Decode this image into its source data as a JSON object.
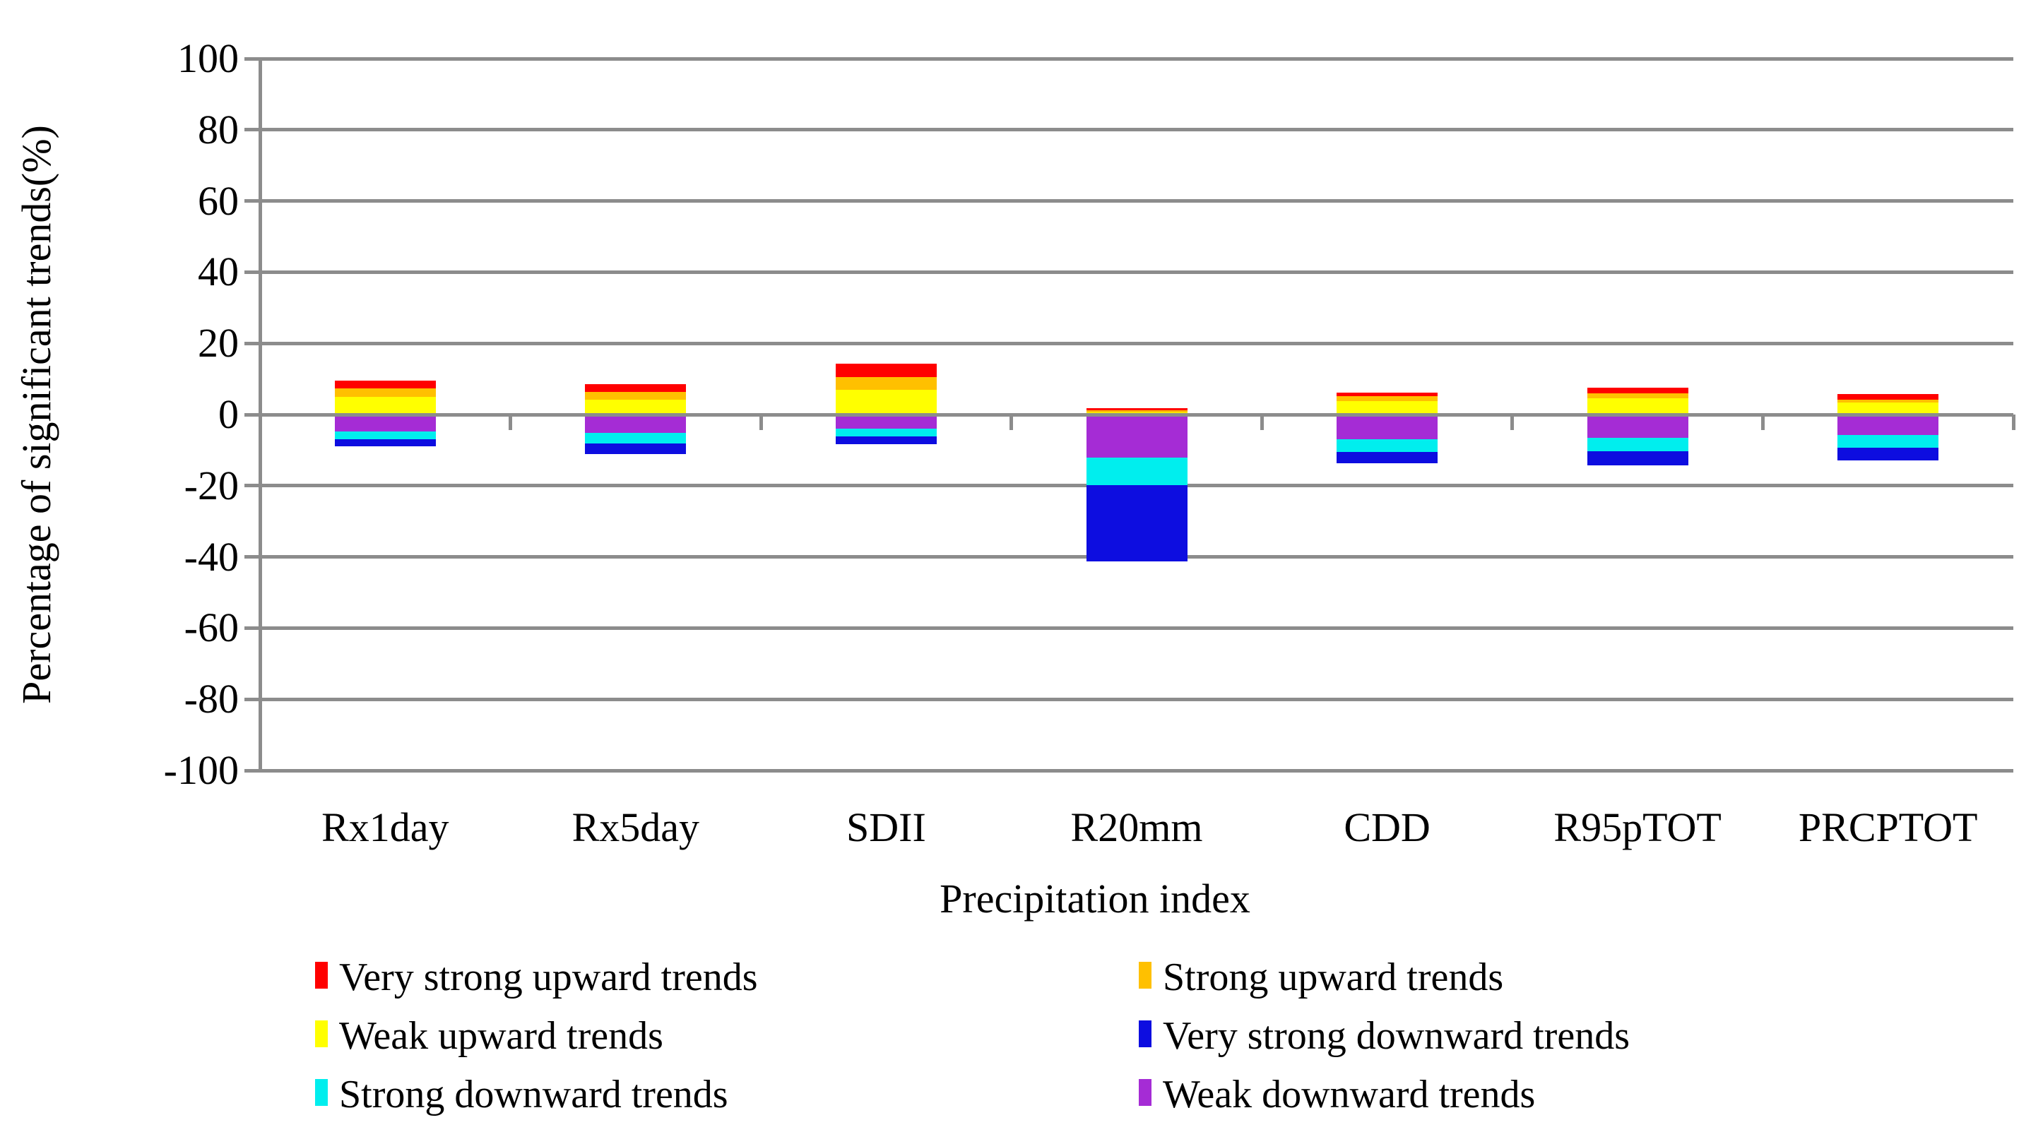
{
  "chart_data": {
    "type": "bar",
    "stacked": true,
    "title": "",
    "xlabel": "Precipitation index",
    "ylabel": "Percentage of significant trends(%)",
    "ylim": [
      -100,
      100
    ],
    "ytick_step": 20,
    "ytick_labels": [
      "100",
      "80",
      "60",
      "40",
      "20",
      "0",
      "-20",
      "-40",
      "-60",
      "-80",
      "-100"
    ],
    "grid": true,
    "legend_position": "bottom",
    "legend_columns": 2,
    "categories": [
      "Rx1day",
      "Rx5day",
      "SDII",
      "R20mm",
      "CDD",
      "R95pTOT",
      "PRCPTOT"
    ],
    "series": [
      {
        "name": "Very strong upward trends",
        "color": "#FF0000",
        "values": [
          2.1,
          2.2,
          3.7,
          0.6,
          1.1,
          1.5,
          1.6
        ]
      },
      {
        "name": "Strong upward trends",
        "color": "#FFC000",
        "values": [
          2.4,
          2.1,
          3.5,
          0.6,
          1.3,
          1.5,
          0.7
        ]
      },
      {
        "name": "Weak upward trends",
        "color": "#FFFF00",
        "values": [
          5.0,
          4.2,
          7.0,
          0.5,
          3.8,
          4.5,
          3.4
        ]
      },
      {
        "name": "Very strong downward trends",
        "color": "#0D0DE0",
        "values": [
          -1.9,
          -3.0,
          -2.1,
          -21.3,
          -3.2,
          -3.9,
          -3.5
        ]
      },
      {
        "name": "Strong downward trends",
        "color": "#00EEEE",
        "values": [
          -2.2,
          -3.0,
          -2.2,
          -7.7,
          -3.6,
          -3.8,
          -3.6
        ]
      },
      {
        "name": "Weak downward trends",
        "color": "#A52CD5",
        "values": [
          -4.8,
          -5.1,
          -4.0,
          -12.2,
          -6.9,
          -6.5,
          -5.8
        ]
      }
    ],
    "colors": {
      "gridline": "#8C8C8C",
      "axis_line": "#8C8C8C",
      "text": "#000000",
      "background": "#FFFFFF"
    }
  }
}
